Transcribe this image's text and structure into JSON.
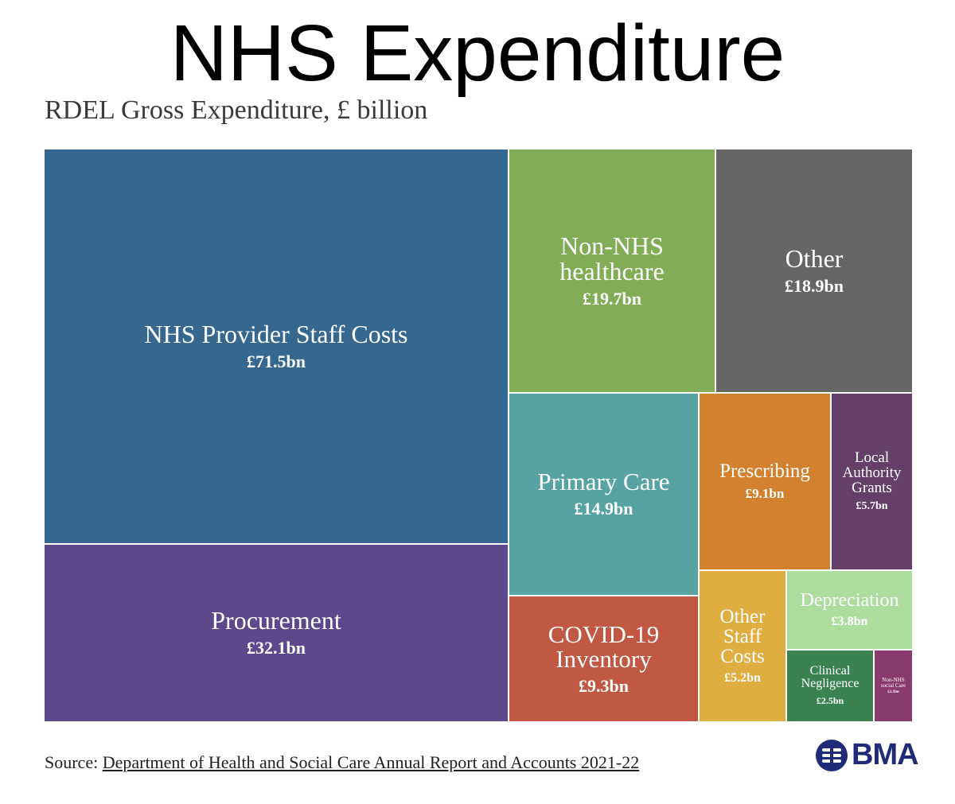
{
  "header": {
    "title": "NHS Expenditure",
    "subtitle": "RDEL Gross Expenditure, £ billion"
  },
  "chart_data": {
    "type": "treemap",
    "title": "NHS Expenditure",
    "subtitle": "RDEL Gross Expenditure, £ billion",
    "unit": "£ billion",
    "items": [
      {
        "label": "NHS Provider Staff Costs",
        "value": 71.5,
        "value_label": "£71.5bn",
        "color": "#36688f"
      },
      {
        "label": "Procurement",
        "value": 32.1,
        "value_label": "£32.1bn",
        "color": "#5c488a"
      },
      {
        "label": "Non-NHS healthcare",
        "value": 19.7,
        "value_label": "£19.7bn",
        "color": "#80ad55"
      },
      {
        "label": "Other",
        "value": 18.9,
        "value_label": "£18.9bn",
        "color": "#666666"
      },
      {
        "label": "Primary Care",
        "value": 14.9,
        "value_label": "£14.9bn",
        "color": "#57a3a3"
      },
      {
        "label": "COVID-19 Inventory",
        "value": 9.3,
        "value_label": "£9.3bn",
        "color": "#c05844"
      },
      {
        "label": "Prescribing",
        "value": 9.1,
        "value_label": "£9.1bn",
        "color": "#d2822f"
      },
      {
        "label": "Local Authority Grants",
        "value": 5.7,
        "value_label": "£5.7bn",
        "color": "#653f6a"
      },
      {
        "label": "Other Staff Costs",
        "value": 5.2,
        "value_label": "£5.2bn",
        "color": "#e0ae40"
      },
      {
        "label": "Depreciation",
        "value": 3.8,
        "value_label": "£3.8bn",
        "color": "#addc9f"
      },
      {
        "label": "Clinical Negligence",
        "value": 2.5,
        "value_label": "£2.5bn",
        "color": "#3a8351"
      },
      {
        "label": "Non-NHS social Care",
        "value": 1.1,
        "value_label": "£1.1bn",
        "color": "#8a3b6d"
      }
    ]
  },
  "footer": {
    "source_prefix": "Source: ",
    "source_link": "Department of Health and Social Care Annual Report and Accounts 2021-22",
    "logo_text": "BMA",
    "logo_icon": "bma-logo-icon"
  }
}
